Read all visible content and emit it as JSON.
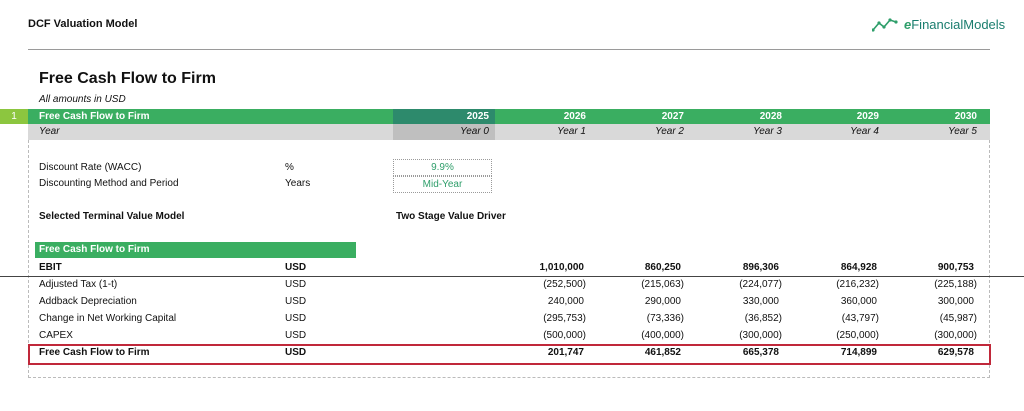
{
  "header": {
    "title": "DCF Valuation Model",
    "brand_prefix": "e",
    "brand_name": "FinancialModels"
  },
  "section": {
    "title": "Free Cash Flow to Firm",
    "subtitle": "All amounts in USD",
    "row_index": "1",
    "band_label": "Free Cash Flow to Firm",
    "year_label": "Year"
  },
  "years": [
    "2025",
    "2026",
    "2027",
    "2028",
    "2029",
    "2030"
  ],
  "year_names": [
    "Year 0",
    "Year 1",
    "Year 2",
    "Year 3",
    "Year 4",
    "Year 5"
  ],
  "inputs": {
    "wacc_label": "Discount Rate (WACC)",
    "wacc_unit": "%",
    "wacc_value": "9.9%",
    "method_label": "Discounting Method and Period",
    "method_unit": "Years",
    "method_value": "Mid-Year",
    "terminal_label": "Selected Terminal Value Model",
    "terminal_value": "Two Stage Value Driver"
  },
  "fcf": {
    "header": "Free Cash Flow to Firm",
    "rows": [
      {
        "label": "EBIT",
        "unit": "USD",
        "values": [
          "1,010,000",
          "860,250",
          "896,306",
          "864,928",
          "900,753"
        ]
      },
      {
        "label": "Adjusted Tax (1-t)",
        "unit": "USD",
        "values": [
          "(252,500)",
          "(215,063)",
          "(224,077)",
          "(216,232)",
          "(225,188)"
        ]
      },
      {
        "label": "Addback Depreciation",
        "unit": "USD",
        "values": [
          "240,000",
          "290,000",
          "330,000",
          "360,000",
          "300,000"
        ]
      },
      {
        "label": "Change in Net Working Capital",
        "unit": "USD",
        "values": [
          "(295,753)",
          "(73,336)",
          "(36,852)",
          "(43,797)",
          "(45,987)"
        ]
      },
      {
        "label": "CAPEX",
        "unit": "USD",
        "values": [
          "(500,000)",
          "(400,000)",
          "(300,000)",
          "(250,000)",
          "(300,000)"
        ]
      },
      {
        "label": "Free Cash Flow to Firm",
        "unit": "USD",
        "values": [
          "201,747",
          "461,852",
          "665,378",
          "714,899",
          "629,578"
        ]
      }
    ]
  },
  "colors": {
    "band_green": "#3aae61",
    "year0_dark": "#2d8a6c",
    "index_lime": "#8cc63f",
    "input_green": "#2e9e6a",
    "highlight_red": "#c0283a"
  }
}
